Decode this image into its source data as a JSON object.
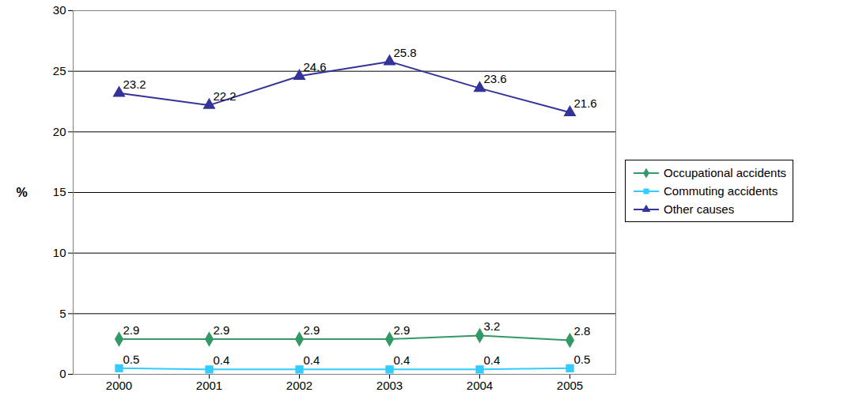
{
  "chart_data": {
    "type": "line",
    "y_label": "%",
    "categories": [
      "2000",
      "2001",
      "2002",
      "2003",
      "2004",
      "2005"
    ],
    "series": [
      {
        "name": "Occupational accidents",
        "color": "#339966",
        "marker": "diamond",
        "values": [
          2.9,
          2.9,
          2.9,
          2.9,
          3.2,
          2.8
        ]
      },
      {
        "name": "Commuting accidents",
        "color": "#33ccff",
        "marker": "square",
        "values": [
          0.5,
          0.4,
          0.4,
          0.4,
          0.4,
          0.5
        ]
      },
      {
        "name": "Other causes",
        "color": "#333399",
        "marker": "triangle",
        "values": [
          23.2,
          22.2,
          24.6,
          25.8,
          23.6,
          21.6
        ]
      }
    ],
    "ylim": [
      0,
      30
    ],
    "yticks": [
      0,
      5,
      10,
      15,
      20,
      25,
      30
    ],
    "grid": true,
    "legend": "right",
    "data_labels": true
  }
}
